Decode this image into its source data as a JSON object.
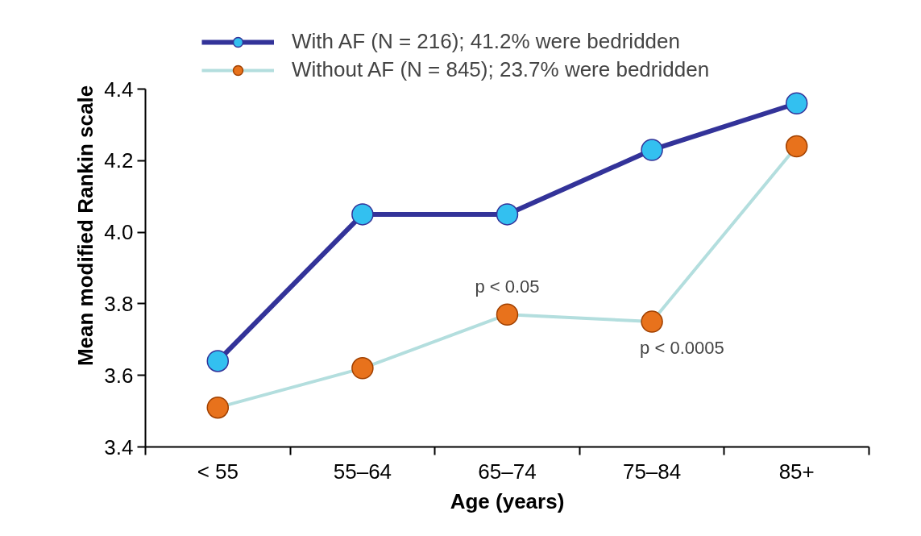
{
  "chart_data": {
    "type": "line",
    "xlabel": "Age (years)",
    "ylabel": "Mean modified Rankin scale",
    "categories": [
      "< 55",
      "55–64",
      "65–74",
      "75–84",
      "85+"
    ],
    "series": [
      {
        "name": "With AF (N = 216); 41.2% were bedridden",
        "color": "#333399",
        "values": [
          3.64,
          4.05,
          4.05,
          4.23,
          4.36
        ]
      },
      {
        "name": "Without AF (N = 845); 23.7% were bedridden",
        "color": "#b3dede",
        "values": [
          3.51,
          3.62,
          3.77,
          3.75,
          4.24
        ]
      }
    ],
    "ylim": [
      3.4,
      4.4
    ],
    "yticks": [
      3.4,
      3.6,
      3.8,
      {
        "value": 4.0,
        "label": "4.0"
      },
      4.2,
      4.4
    ],
    "grid": false,
    "legend": "top",
    "marker": "circle",
    "line_style": "solid",
    "annotations": [
      {
        "text": "p < 0.05",
        "x": "65–74",
        "y": 3.77
      },
      {
        "text": "p < 0.0005",
        "x": "75–84",
        "y": 3.75
      }
    ]
  }
}
